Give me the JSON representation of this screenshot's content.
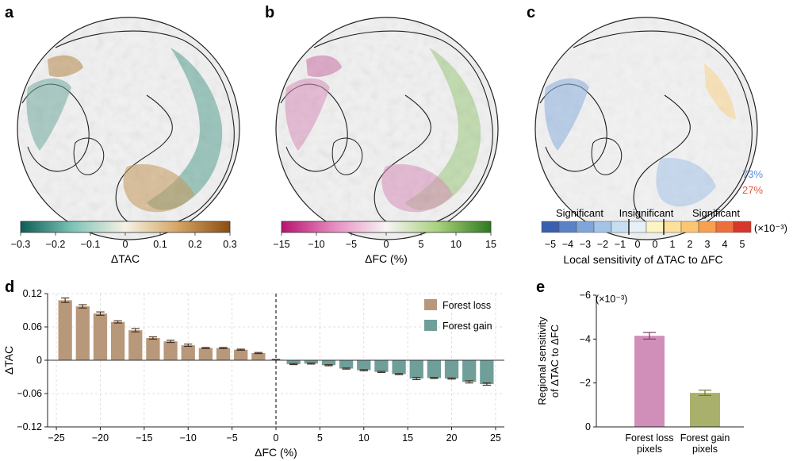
{
  "panel_labels": [
    "a",
    "b",
    "c",
    "d",
    "e"
  ],
  "colors": {
    "loss": "#b8987a",
    "gain": "#6f9f98",
    "err": "#3f2b1c",
    "e_loss": "#cf8fb8",
    "e_gain": "#a9b06b",
    "e_err": "#7d3f6f",
    "pos73": "#5b8fd6",
    "neg27": "#e8553f"
  },
  "panel_a": {
    "colorbar_ticks": [
      "-0.3",
      "-0.2",
      "-0.1",
      "0",
      "0.1",
      "0.2",
      "0.3"
    ],
    "label": "ΔTAC",
    "colors": [
      "#0b5e56",
      "#7fc4b8",
      "#f6f2e4",
      "#d4a564",
      "#8a4d12"
    ]
  },
  "panel_b": {
    "colorbar_ticks": [
      "-15",
      "-10",
      "-5",
      "0",
      "5",
      "10",
      "15"
    ],
    "label": "ΔFC (%)",
    "colors": [
      "#b8126f",
      "#e58cc0",
      "#f8f4f4",
      "#a7d07b",
      "#2e7a1e"
    ]
  },
  "panel_c": {
    "colorbar_ticks": [
      "-5",
      "-4",
      "-3",
      "-2",
      "-1",
      "0",
      "0",
      "1",
      "2",
      "3",
      "4",
      "5"
    ],
    "colors": [
      "#3a5fae",
      "#5a82c4",
      "#7ea6d8",
      "#a3c4e6",
      "#c7def1",
      "#e6f0f8",
      "#fdf3c4",
      "#fde09a",
      "#fcc572",
      "#f7a04f",
      "#ee6e3c",
      "#d8352c"
    ],
    "region_labels": [
      "Significant",
      "Insignificant",
      "Significant"
    ],
    "multiplier": "(×10⁻³)",
    "label": "Local sensitivity of ΔTAC to ΔFC",
    "pct_negative": "73%",
    "pct_positive": "27%"
  },
  "chart_data": [
    {
      "panel": "d",
      "type": "bar",
      "xlabel": "ΔFC (%)",
      "ylabel": "ΔTAC",
      "xlim": [
        -26,
        26
      ],
      "ylim": [
        -0.12,
        0.12
      ],
      "xticks": [
        "-25",
        "-20",
        "-15",
        "-10",
        "-5",
        "0",
        "5",
        "10",
        "15",
        "20",
        "25"
      ],
      "yticks": [
        "0.12",
        "0.06",
        "0",
        "-0.06",
        "-0.12"
      ],
      "legend": [
        "Forest loss",
        "Forest gain"
      ],
      "legend_position": "top-right",
      "series": [
        {
          "name": "Forest loss",
          "x": [
            -24,
            -22,
            -20,
            -18,
            -16,
            -14,
            -12,
            -10,
            -8,
            -6,
            -4,
            -2,
            0
          ],
          "values": [
            0.108,
            0.097,
            0.084,
            0.069,
            0.054,
            0.04,
            0.034,
            0.027,
            0.022,
            0.022,
            0.019,
            0.013,
            0.001
          ],
          "errors": [
            0.004,
            0.003,
            0.003,
            0.002,
            0.003,
            0.002,
            0.002,
            0.002,
            0.001,
            0.001,
            0.001,
            0.001,
            0.0005
          ]
        },
        {
          "name": "Forest gain",
          "x": [
            2,
            4,
            6,
            8,
            10,
            12,
            14,
            16,
            18,
            20,
            22,
            24
          ],
          "values": [
            -0.007,
            -0.006,
            -0.009,
            -0.015,
            -0.018,
            -0.021,
            -0.025,
            -0.033,
            -0.032,
            -0.033,
            -0.039,
            -0.043
          ],
          "errors": [
            0.001,
            0.001,
            0.001,
            0.001,
            0.001,
            0.001,
            0.001,
            0.002,
            0.001,
            0.001,
            0.002,
            0.002
          ]
        }
      ]
    },
    {
      "panel": "e",
      "type": "bar",
      "ylabel": "Regional sensitivity of ΔTAC to ΔFC",
      "ylabel_lines": [
        "Regional sensitivity",
        "of ΔTAC to ΔFC"
      ],
      "multiplier": "(×10⁻³)",
      "ylim": [
        0,
        -6
      ],
      "yticks": [
        "-6",
        "-4",
        "-2",
        "0"
      ],
      "categories": [
        "Forest loss pixels",
        "Forest gain pixels"
      ],
      "category_lines": [
        [
          "Forest loss",
          "pixels"
        ],
        [
          "Forest gain",
          "pixels"
        ]
      ],
      "values": [
        -4.15,
        -1.55
      ],
      "errors": [
        0.15,
        0.12
      ]
    }
  ]
}
